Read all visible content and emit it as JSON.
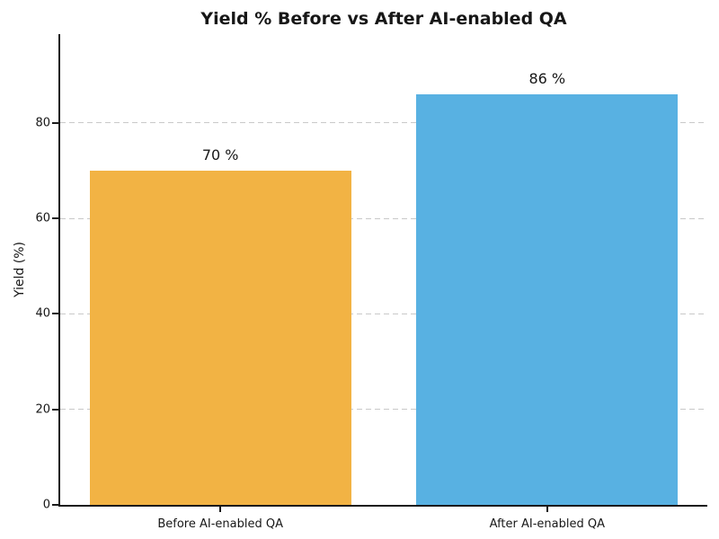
{
  "chart_data": {
    "type": "bar",
    "title": "Yield % Before vs After AI-enabled QA",
    "xlabel": "",
    "ylabel": "Yield (%)",
    "categories": [
      "Before AI-enabled QA",
      "After AI-enabled QA"
    ],
    "values": [
      70,
      86
    ],
    "value_labels": [
      "70 %",
      "86 %"
    ],
    "bar_colors": [
      "#F2B344",
      "#58B1E2"
    ],
    "yticks": [
      0,
      20,
      40,
      60,
      80
    ],
    "ytick_labels": [
      "0",
      "20",
      "40",
      "60",
      "80"
    ],
    "ylim": [
      0,
      98.6
    ],
    "xlim": [
      -0.49,
      1.49
    ],
    "x_positions": [
      0,
      1
    ],
    "bar_width": 0.8,
    "grid": "horizontal dashed, on y ticks above 0",
    "grid_color": "#c9c9c9",
    "axis_color": "#1a1a1a",
    "text_color": "#171717",
    "background_color": "#ffffff",
    "legend": "none"
  }
}
